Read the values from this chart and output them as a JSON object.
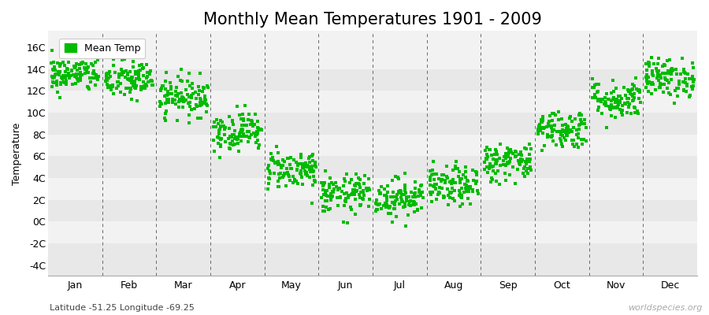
{
  "title": "Monthly Mean Temperatures 1901 - 2009",
  "ylabel": "Temperature",
  "subtitle": "Latitude -51.25 Longitude -69.25",
  "watermark": "worldspecies.org",
  "months": [
    "Jan",
    "Feb",
    "Mar",
    "Apr",
    "May",
    "Jun",
    "Jul",
    "Aug",
    "Sep",
    "Oct",
    "Nov",
    "Dec"
  ],
  "yticks": [
    -4,
    -2,
    0,
    2,
    4,
    6,
    8,
    10,
    12,
    14,
    16
  ],
  "ylim": [
    -5.0,
    17.5
  ],
  "xlim": [
    0,
    12
  ],
  "mean_temps": [
    13.5,
    13.0,
    11.5,
    8.3,
    4.8,
    2.5,
    2.2,
    3.2,
    5.5,
    8.5,
    11.2,
    13.2
  ],
  "temp_spread": [
    0.8,
    0.9,
    0.9,
    0.9,
    0.9,
    0.9,
    0.9,
    0.9,
    0.9,
    0.9,
    0.9,
    0.9
  ],
  "n_years": 109,
  "dot_color": "#00BB00",
  "band_colors": [
    "#e8e8e8",
    "#f2f2f2"
  ],
  "legend_label": "Mean Temp",
  "title_fontsize": 15,
  "axis_fontsize": 9,
  "label_fontsize": 9,
  "seed": 42
}
